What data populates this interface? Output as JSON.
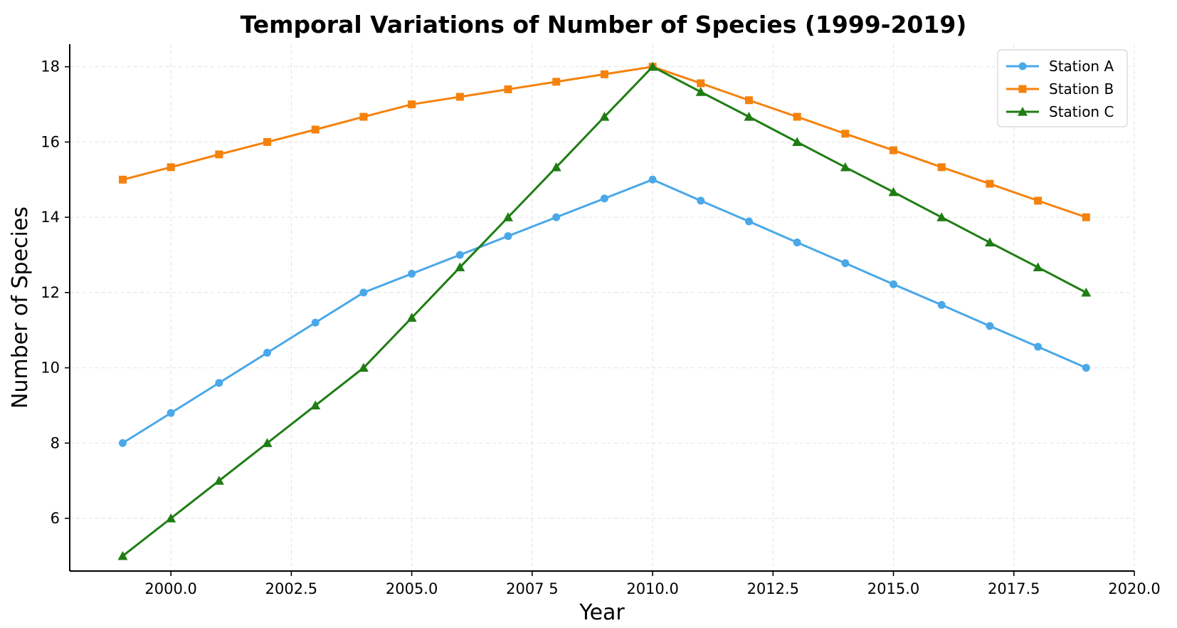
{
  "chart_data": {
    "type": "line",
    "title": "Temporal Variations of Number of Species (1999-2019)",
    "xlabel": "Year",
    "ylabel": "Number of Species",
    "xlim": [
      1997.9,
      2020.0
    ],
    "ylim": [
      4.6,
      18.6
    ],
    "xticks": [
      2000.0,
      2002.5,
      2005.0,
      2007.5,
      2010.0,
      2012.5,
      2015.0,
      2017.5,
      2020.0
    ],
    "xtick_labels": [
      "2000.0",
      "2002.5",
      "2005.0",
      "2007 5",
      "2010.0",
      "2012.5",
      "2015.0",
      "2017.5",
      "2020.0"
    ],
    "yticks": [
      6,
      8,
      10,
      12,
      14,
      16,
      18
    ],
    "ytick_labels": [
      "6",
      "8",
      "10",
      "12",
      "14",
      "16",
      "18"
    ],
    "grid": true,
    "legend_position": "top-right",
    "x": [
      1999,
      2000,
      2001,
      2002,
      2003,
      2004,
      2005,
      2006,
      2007,
      2008,
      2009,
      2010,
      2011,
      2012,
      2013,
      2014,
      2015,
      2016,
      2017,
      2018,
      2019
    ],
    "series": [
      {
        "name": "Station A",
        "color": "#4aa8e8",
        "marker": "circle",
        "values": [
          8.0,
          8.8,
          9.6,
          10.4,
          11.2,
          12.0,
          12.5,
          13.0,
          13.5,
          14.0,
          14.5,
          15.0,
          14.44,
          13.89,
          13.33,
          12.78,
          12.22,
          11.67,
          11.11,
          10.56,
          10.0
        ]
      },
      {
        "name": "Station B",
        "color": "#f5820d",
        "marker": "square",
        "values": [
          15.0,
          15.33,
          15.67,
          16.0,
          16.33,
          16.67,
          17.0,
          17.2,
          17.4,
          17.6,
          17.8,
          18.0,
          17.56,
          17.11,
          16.67,
          16.22,
          15.78,
          15.33,
          14.89,
          14.44,
          14.0
        ]
      },
      {
        "name": "Station C",
        "color": "#1f7d13",
        "marker": "triangle",
        "values": [
          5.0,
          6.0,
          7.0,
          8.0,
          9.0,
          10.0,
          11.33,
          12.67,
          14.0,
          15.33,
          16.67,
          18.0,
          17.33,
          16.67,
          16.0,
          15.33,
          14.67,
          14.0,
          13.33,
          12.67,
          12.0
        ]
      }
    ]
  }
}
